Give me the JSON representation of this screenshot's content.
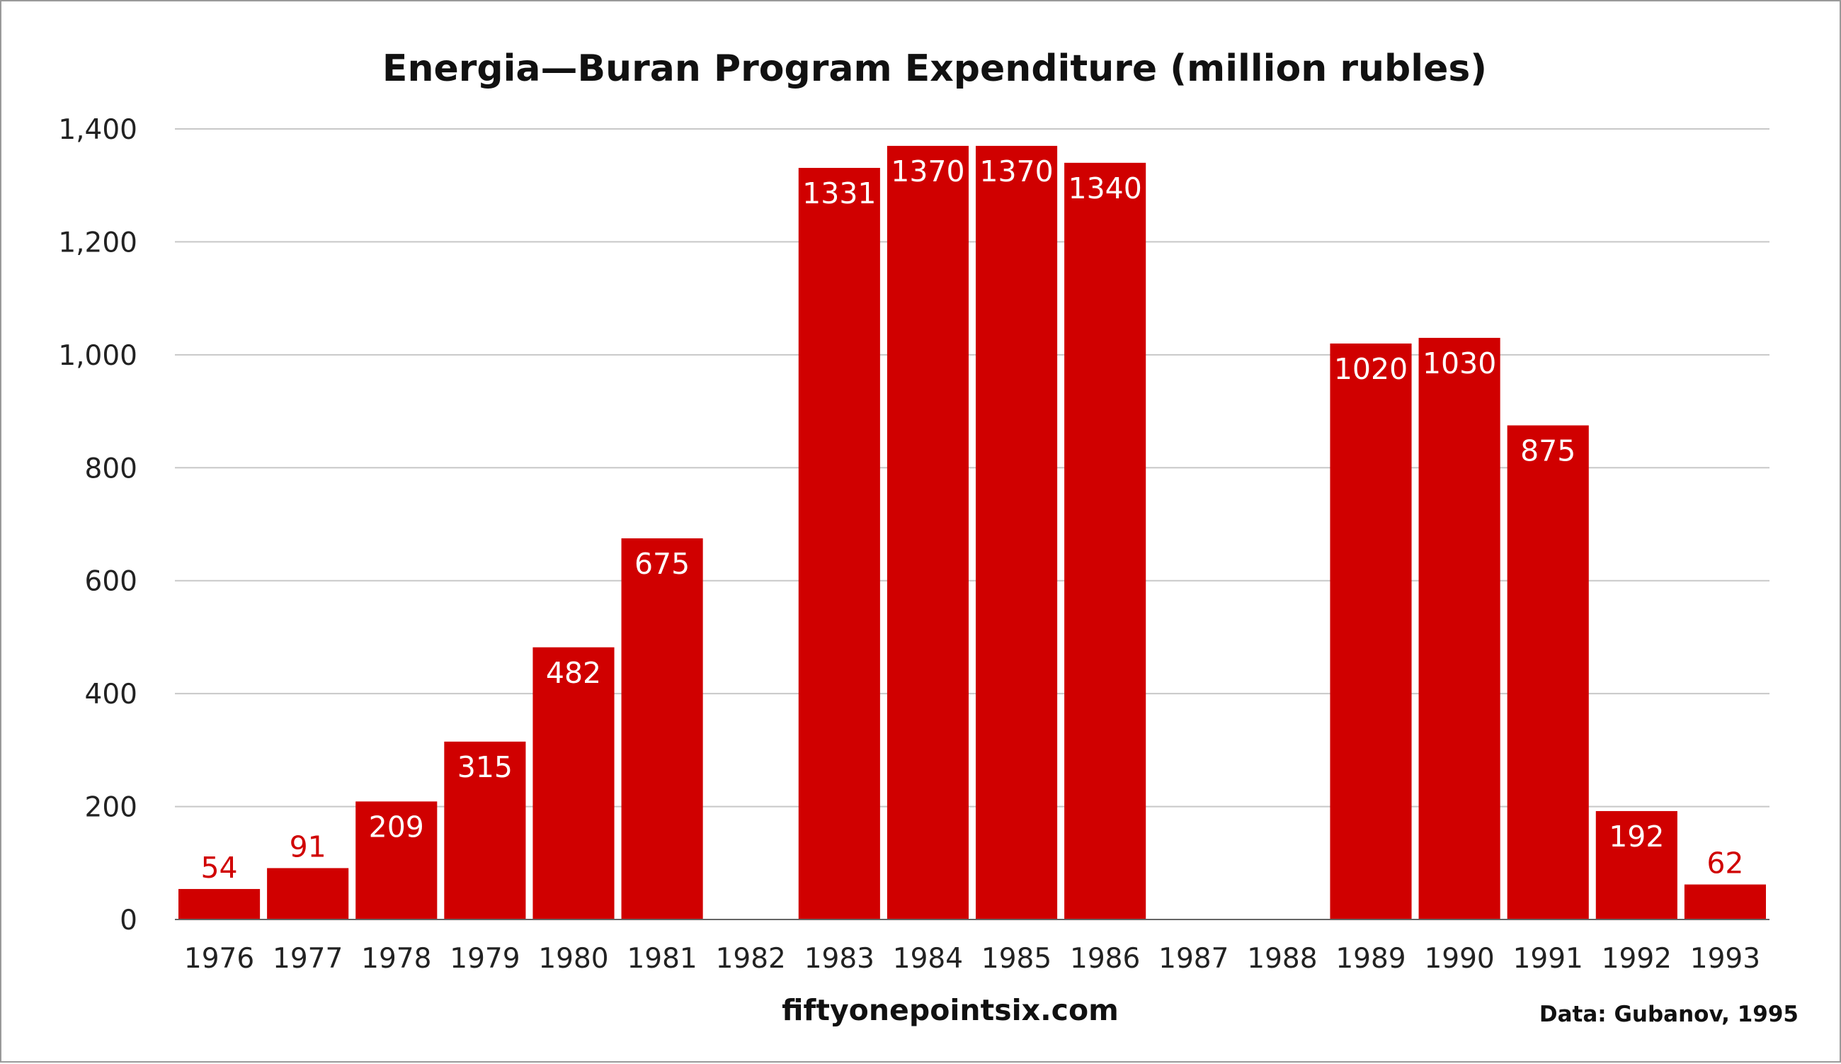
{
  "chart_data": {
    "type": "bar",
    "title": "Energia—Buran Program Expenditure (million rubles)",
    "categories": [
      "1976",
      "1977",
      "1978",
      "1979",
      "1980",
      "1981",
      "1982",
      "1983",
      "1984",
      "1985",
      "1986",
      "1987",
      "1988",
      "1989",
      "1990",
      "1991",
      "1992",
      "1993"
    ],
    "values": [
      54,
      91,
      209,
      315,
      482,
      675,
      null,
      1331,
      1370,
      1370,
      1340,
      null,
      null,
      1020,
      1030,
      875,
      192,
      62
    ],
    "data_labels": [
      "54",
      "91",
      "209",
      "315",
      "482",
      "675",
      "",
      "1331",
      "1370",
      "1370",
      "1340",
      "",
      "",
      "1020",
      "1030",
      "875",
      "192",
      "62"
    ],
    "yticks": [
      "0",
      "200",
      "400",
      "600",
      "800",
      "1,000",
      "1,200",
      "1,400"
    ],
    "ylim": [
      0,
      1400
    ],
    "grid": true,
    "bar_color": "#d00000",
    "xlabel": "",
    "ylabel": ""
  },
  "footer": {
    "website": "fiftyonepointsix.com",
    "source": "Data: Gubanov, 1995"
  }
}
